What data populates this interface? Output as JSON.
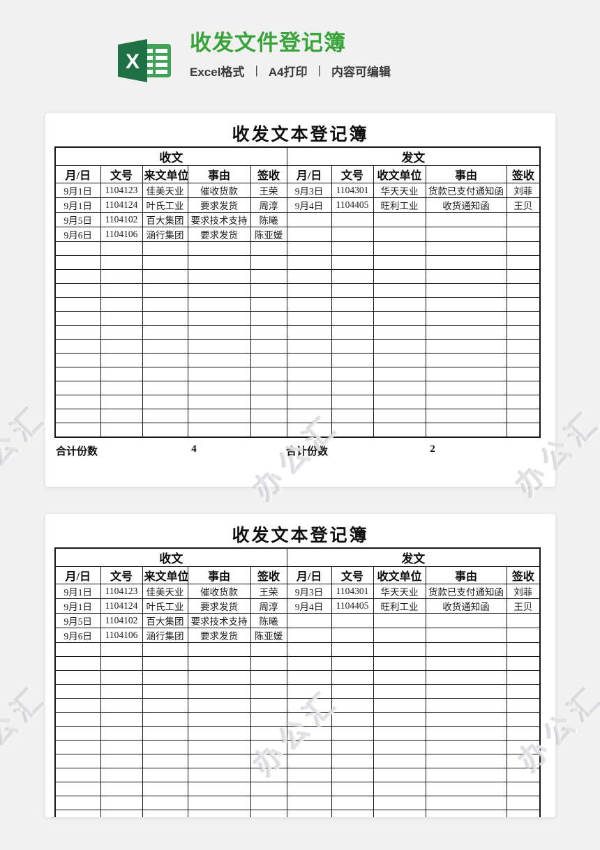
{
  "header": {
    "icon": "excel-icon",
    "title": "收发文件登记簿",
    "title_color": "#38a338",
    "subtitle_parts": [
      "Excel格式",
      "A4打印",
      "内容可编辑"
    ],
    "separator": "|"
  },
  "watermark": {
    "text": "办公汇"
  },
  "preview_panels": 2,
  "sheet": {
    "title": "收发文本登记簿",
    "group_left": "收文",
    "group_right": "发文",
    "columns_left": [
      "月/日",
      "文号",
      "来文单位",
      "事由",
      "签收"
    ],
    "columns_right": [
      "月/日",
      "文号",
      "收文单位",
      "事由",
      "签收"
    ],
    "rows_left": [
      [
        "9月1日",
        "1104123",
        "佳美天业",
        "催收货款",
        "王荣"
      ],
      [
        "9月1日",
        "1104124",
        "叶氏工业",
        "要求发货",
        "周淳"
      ],
      [
        "9月5日",
        "1104102",
        "百大集团",
        "要求技术支持",
        "陈曦"
      ],
      [
        "9月6日",
        "1104106",
        "涵行集团",
        "要求发货",
        "陈亚媛"
      ]
    ],
    "rows_right": [
      [
        "9月3日",
        "1104301",
        "华天天业",
        "货款已支付通知函",
        "刘菲"
      ],
      [
        "9月4日",
        "1104405",
        "旺利工业",
        "收货通知函",
        "王贝"
      ]
    ],
    "total_rows": 18,
    "totals": {
      "left_label": "合计份数",
      "left_value": "4",
      "right_label": "合计份数",
      "right_value": "2"
    }
  }
}
